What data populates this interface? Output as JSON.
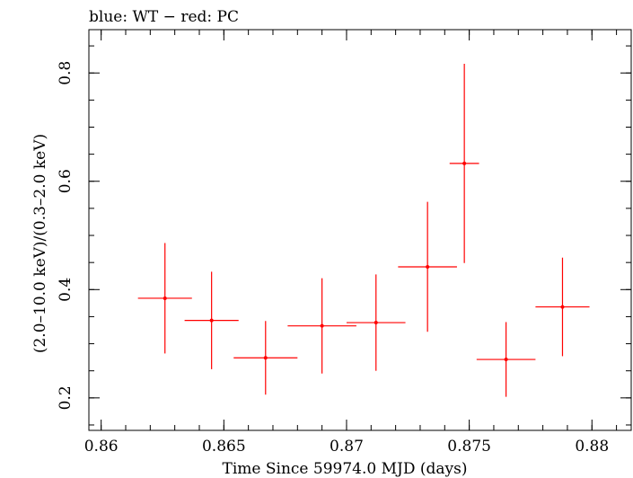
{
  "chart_data": {
    "type": "scatter",
    "title": "blue: WT − red: PC",
    "xlabel": "Time Since 59974.0 MJD (days)",
    "ylabel": "(2.0–10.0 keV)/(0.3–2.0 keV)",
    "xlim": [
      0.8595,
      0.8816
    ],
    "ylim": [
      0.14,
      0.88
    ],
    "x_ticks": [
      0.86,
      0.865,
      0.87,
      0.875,
      0.88
    ],
    "x_tick_labels": [
      "0.86",
      "0.865",
      "0.87",
      "0.875",
      "0.88"
    ],
    "y_ticks": [
      0.2,
      0.4,
      0.6,
      0.8
    ],
    "y_tick_labels": [
      "0.2",
      "0.4",
      "0.6",
      "0.8"
    ],
    "grid": false,
    "series": [
      {
        "color": "#ff0000",
        "points": [
          {
            "x": 0.8626,
            "xerr": 0.0011,
            "y": 0.384,
            "yerr": 0.102
          },
          {
            "x": 0.8645,
            "xerr": 0.0011,
            "y": 0.343,
            "yerr": 0.09
          },
          {
            "x": 0.8667,
            "xerr": 0.0013,
            "y": 0.274,
            "yerr": 0.068
          },
          {
            "x": 0.869,
            "xerr": 0.0014,
            "y": 0.333,
            "yerr": 0.088
          },
          {
            "x": 0.8712,
            "xerr": 0.0012,
            "y": 0.339,
            "yerr": 0.089
          },
          {
            "x": 0.8733,
            "xerr": 0.0012,
            "y": 0.442,
            "yerr": 0.12
          },
          {
            "x": 0.8748,
            "xerr": 0.0006,
            "y": 0.633,
            "yerr": 0.184
          },
          {
            "x": 0.8765,
            "xerr": 0.0012,
            "y": 0.271,
            "yerr": 0.069
          },
          {
            "x": 0.8788,
            "xerr": 0.0011,
            "y": 0.368,
            "yerr": 0.091
          }
        ]
      }
    ]
  }
}
